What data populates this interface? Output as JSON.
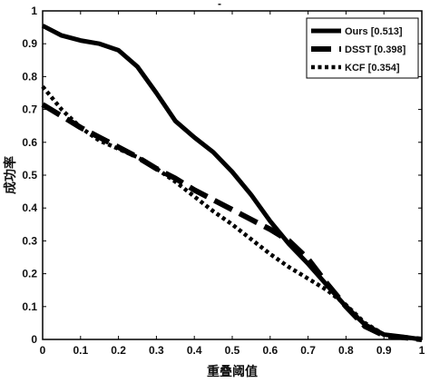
{
  "chart_data": {
    "type": "line",
    "title": "",
    "xlabel": "重叠阈值",
    "ylabel": "成功率",
    "xlim": [
      0,
      1
    ],
    "ylim": [
      0,
      1
    ],
    "xticks": [
      "0",
      "0.1",
      "0.2",
      "0.3",
      "0.4",
      "0.5",
      "0.6",
      "0.7",
      "0.8",
      "0.9",
      "1"
    ],
    "yticks": [
      "0",
      "0.1",
      "0.2",
      "0.3",
      "0.4",
      "0.5",
      "0.6",
      "0.7",
      "0.8",
      "0.9",
      "1"
    ],
    "grid": false,
    "legend_position": "top-right",
    "series": [
      {
        "name": "Ours [0.513]",
        "style": "solid",
        "color": "#000000",
        "x": [
          0,
          0.05,
          0.1,
          0.15,
          0.2,
          0.25,
          0.3,
          0.35,
          0.4,
          0.45,
          0.5,
          0.55,
          0.6,
          0.65,
          0.7,
          0.75,
          0.8,
          0.85,
          0.9,
          0.95,
          1.0
        ],
        "y": [
          0.955,
          0.925,
          0.91,
          0.9,
          0.88,
          0.83,
          0.75,
          0.665,
          0.615,
          0.57,
          0.51,
          0.44,
          0.36,
          0.29,
          0.23,
          0.165,
          0.1,
          0.045,
          0.015,
          0.008,
          0.0
        ]
      },
      {
        "name": "DSST [0.398]",
        "style": "dashed",
        "color": "#000000",
        "x": [
          0,
          0.05,
          0.1,
          0.15,
          0.2,
          0.25,
          0.3,
          0.35,
          0.4,
          0.45,
          0.5,
          0.55,
          0.6,
          0.65,
          0.7,
          0.75,
          0.8,
          0.85,
          0.9,
          0.95,
          1.0
        ],
        "y": [
          0.715,
          0.68,
          0.645,
          0.615,
          0.585,
          0.555,
          0.52,
          0.49,
          0.455,
          0.425,
          0.395,
          0.365,
          0.335,
          0.3,
          0.245,
          0.17,
          0.1,
          0.04,
          0.012,
          0.006,
          0.0
        ]
      },
      {
        "name": "KCF [0.354]",
        "style": "dotted",
        "color": "#000000",
        "x": [
          0,
          0.05,
          0.1,
          0.15,
          0.2,
          0.25,
          0.3,
          0.35,
          0.4,
          0.45,
          0.5,
          0.55,
          0.6,
          0.65,
          0.7,
          0.75,
          0.8,
          0.85,
          0.9,
          0.95,
          1.0
        ],
        "y": [
          0.77,
          0.7,
          0.645,
          0.605,
          0.58,
          0.555,
          0.52,
          0.48,
          0.435,
          0.39,
          0.35,
          0.305,
          0.26,
          0.22,
          0.185,
          0.15,
          0.105,
          0.05,
          0.015,
          0.007,
          0.0
        ]
      }
    ]
  },
  "title_mark": "-"
}
